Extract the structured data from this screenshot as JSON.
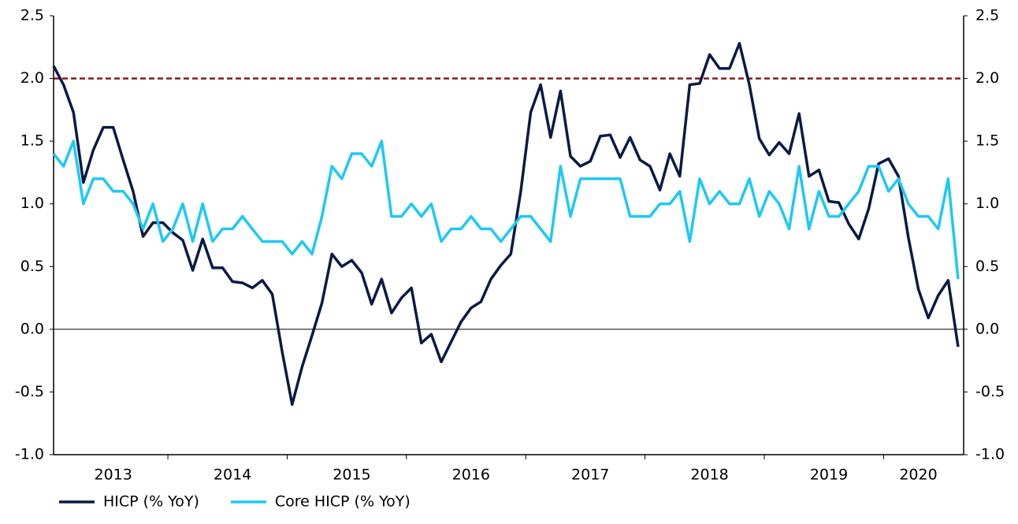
{
  "chart_data": {
    "type": "line",
    "categories": [
      null,
      null,
      null,
      null,
      null,
      null,
      "2013",
      null,
      null,
      null,
      null,
      null,
      null,
      null,
      null,
      null,
      null,
      null,
      "2014",
      null,
      null,
      null,
      null,
      null,
      null,
      null,
      null,
      null,
      null,
      null,
      "2015",
      null,
      null,
      null,
      null,
      null,
      null,
      null,
      null,
      null,
      null,
      null,
      "2016",
      null,
      null,
      null,
      null,
      null,
      null,
      null,
      null,
      null,
      null,
      null,
      "2017",
      null,
      null,
      null,
      null,
      null,
      null,
      null,
      null,
      null,
      null,
      null,
      "2018",
      null,
      null,
      null,
      null,
      null,
      null,
      null,
      null,
      null,
      null,
      null,
      "2019",
      null,
      null,
      null,
      null,
      null,
      null,
      null,
      null,
      "2020",
      null,
      null,
      null,
      null
    ],
    "series": [
      {
        "name": "HICP (% YoY)",
        "color": "#0b1a45",
        "values": [
          2.1,
          1.95,
          1.73,
          1.17,
          1.43,
          1.61,
          1.61,
          1.35,
          1.1,
          0.74,
          0.85,
          0.85,
          0.77,
          0.71,
          0.47,
          0.72,
          0.49,
          0.49,
          0.38,
          0.37,
          0.33,
          0.39,
          0.28,
          -0.18,
          -0.6,
          -0.3,
          -0.05,
          0.21,
          0.6,
          0.5,
          0.55,
          0.45,
          0.2,
          0.4,
          0.13,
          0.25,
          0.33,
          -0.11,
          -0.04,
          -0.26,
          -0.1,
          0.06,
          0.17,
          0.22,
          0.4,
          0.51,
          0.6,
          1.1,
          1.73,
          1.95,
          1.53,
          1.9,
          1.38,
          1.3,
          1.34,
          1.54,
          1.55,
          1.37,
          1.53,
          1.35,
          1.3,
          1.11,
          1.4,
          1.22,
          1.95,
          1.96,
          2.19,
          2.08,
          2.08,
          2.28,
          1.95,
          1.52,
          1.39,
          1.49,
          1.4,
          1.72,
          1.22,
          1.27,
          1.02,
          1.01,
          0.84,
          0.72,
          0.96,
          1.32,
          1.36,
          1.22,
          0.73,
          0.32,
          0.09,
          0.27,
          0.39,
          -0.14
        ]
      },
      {
        "name": "Core HICP (% YoY)",
        "color": "#1ec8f5",
        "values": [
          1.4,
          1.3,
          1.5,
          1.0,
          1.2,
          1.2,
          1.1,
          1.1,
          1.0,
          0.8,
          1.0,
          0.7,
          0.8,
          1.0,
          0.7,
          1.0,
          0.7,
          0.8,
          0.8,
          0.9,
          0.8,
          0.7,
          0.7,
          0.7,
          0.6,
          0.7,
          0.6,
          0.9,
          1.3,
          1.2,
          1.4,
          1.4,
          1.3,
          1.5,
          0.9,
          0.9,
          1.0,
          0.9,
          1.0,
          0.7,
          0.8,
          0.8,
          0.9,
          0.8,
          0.8,
          0.7,
          0.8,
          0.9,
          0.9,
          0.8,
          0.7,
          1.3,
          0.9,
          1.2,
          1.2,
          1.2,
          1.2,
          1.2,
          0.9,
          0.9,
          0.9,
          1.0,
          1.0,
          1.1,
          0.7,
          1.2,
          1.0,
          1.1,
          1.0,
          1.0,
          1.2,
          0.9,
          1.1,
          1.0,
          0.8,
          1.3,
          0.8,
          1.1,
          0.9,
          0.9,
          1.0,
          1.1,
          1.3,
          1.3,
          1.1,
          1.2,
          1.0,
          0.9,
          0.9,
          0.8,
          1.2,
          0.4
        ]
      }
    ],
    "ylim": [
      -1.0,
      2.5
    ],
    "yticks": [
      {
        "value": -1,
        "label": "-1.0"
      },
      -0.5,
      {
        "value": 0,
        "label": "0.0"
      },
      0.5,
      {
        "value": 1,
        "label": "1.0"
      },
      1.5,
      {
        "value": 2,
        "label": "2.0"
      },
      2.5
    ],
    "y2lim": [
      -1.0,
      2.5
    ],
    "y2ticks": [
      {
        "value": -1,
        "label": "-1.0"
      },
      -0.5,
      {
        "value": 0,
        "label": "0.0"
      },
      0.5,
      {
        "value": 1,
        "label": "1.0"
      },
      1.5,
      {
        "value": 2,
        "label": "2.0"
      },
      2.5
    ],
    "reference_lines": [
      {
        "value": 2,
        "color": "#8b1a1a",
        "dashed": true
      },
      {
        "value": 0,
        "color": "#000000",
        "dashed": false
      }
    ],
    "grid": false,
    "legend": "bottom-left"
  }
}
